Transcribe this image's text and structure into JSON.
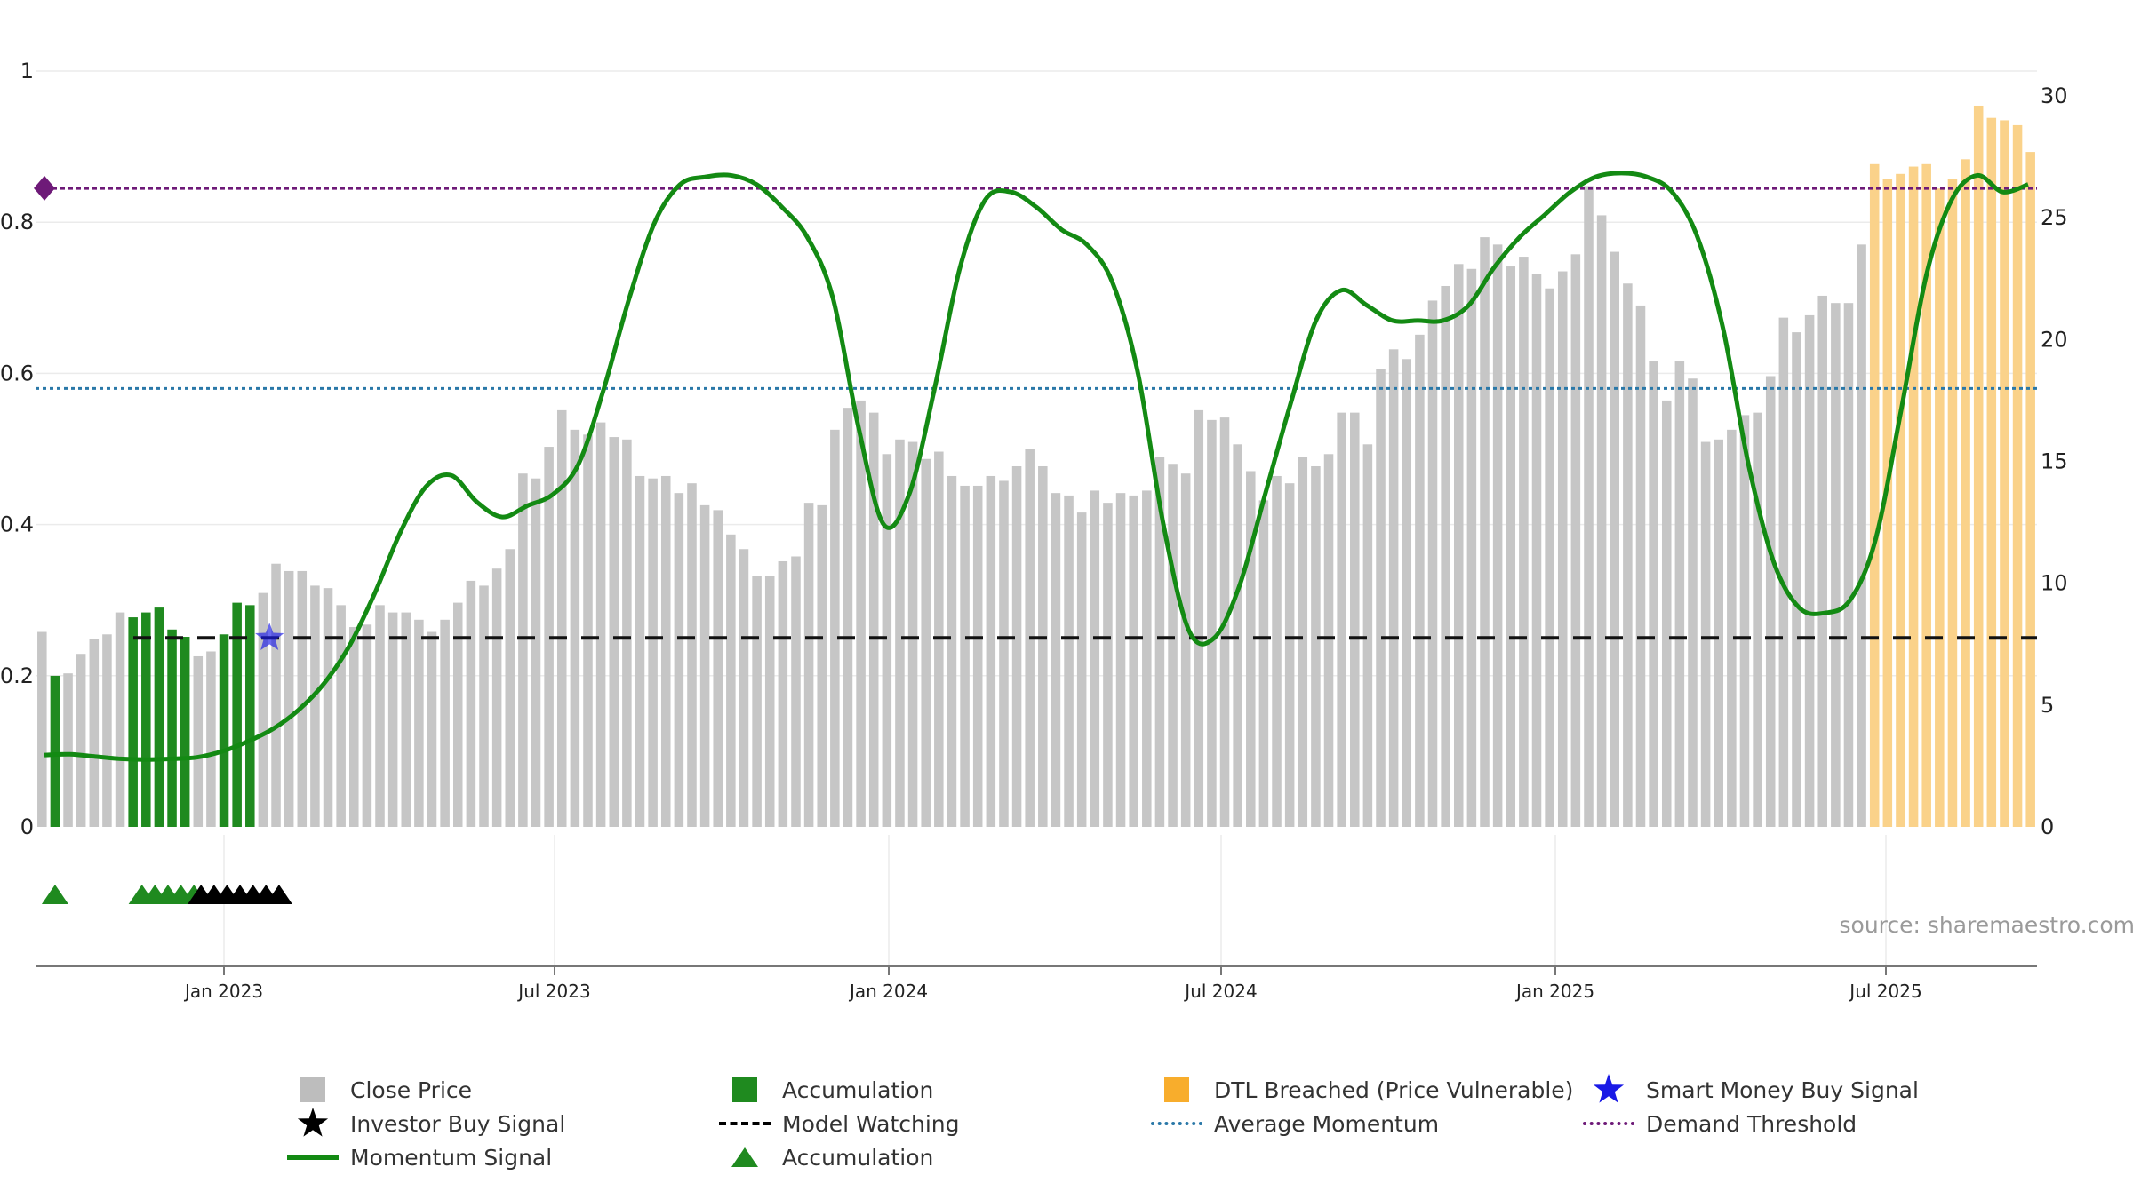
{
  "chart_data": {
    "type": "bar",
    "source": "source: sharemaestro.com",
    "x_ticks": [
      "Jan 2023",
      "Jul 2023",
      "Jan 2024",
      "Jul 2024",
      "Jan 2025",
      "Jul 2025"
    ],
    "y_left": {
      "ticks": [
        "0",
        "0.2",
        "0.4",
        "0.6",
        "0.8",
        "1"
      ],
      "ylim": [
        0,
        1
      ]
    },
    "y_right": {
      "ticks": [
        "0",
        "5",
        "10",
        "15",
        "20",
        "25",
        "30"
      ],
      "ylim": [
        0,
        30
      ]
    },
    "series": [
      {
        "name": "Close Price",
        "axis": "right",
        "values": [
          8.0,
          6.2,
          6.3,
          7.1,
          7.7,
          7.9,
          8.8,
          8.6,
          8.8,
          9.0,
          8.1,
          7.8,
          7.0,
          7.2,
          7.9,
          9.2,
          9.1,
          9.6,
          10.8,
          10.5,
          10.5,
          9.9,
          9.8,
          9.1,
          8.2,
          8.3,
          9.1,
          8.8,
          8.8,
          8.5,
          8.0,
          8.5,
          9.2,
          10.1,
          9.9,
          10.6,
          11.4,
          14.5,
          14.3,
          15.6,
          17.1,
          16.3,
          16.1,
          16.6,
          16.0,
          15.9,
          14.4,
          14.3,
          14.4,
          13.7,
          14.1,
          13.2,
          13.0,
          12.0,
          11.4,
          10.3,
          10.3,
          10.9,
          11.1,
          13.3,
          13.2,
          16.3,
          17.2,
          17.5,
          17.0,
          15.3,
          15.9,
          15.8,
          15.1,
          15.4,
          14.4,
          14.0,
          14.0,
          14.4,
          14.2,
          14.8,
          15.5,
          14.8,
          13.7,
          13.6,
          12.9,
          13.8,
          13.3,
          13.7,
          13.6,
          13.8,
          15.2,
          14.9,
          14.5,
          17.1,
          16.7,
          16.8,
          15.7,
          14.6,
          13.4,
          14.4,
          14.1,
          15.2,
          14.8,
          15.3,
          17.0,
          17.0,
          15.7,
          18.8,
          19.6,
          19.2,
          20.2,
          21.6,
          22.2,
          23.1,
          22.9,
          24.2,
          23.9,
          23.0,
          23.4,
          22.7,
          22.1,
          22.8,
          23.5,
          26.3,
          25.1,
          23.6,
          22.3,
          21.4,
          19.1,
          17.5,
          19.1,
          18.4,
          15.8,
          15.9,
          16.3,
          16.9,
          17.0,
          18.5,
          20.9,
          20.3,
          21.0,
          21.8,
          21.5,
          21.5,
          23.9,
          27.2,
          26.6,
          26.8,
          27.1,
          27.2,
          26.2,
          26.6,
          27.4,
          29.6,
          29.1,
          29.0,
          28.8,
          27.7
        ]
      },
      {
        "name": "Momentum Signal",
        "axis": "left",
        "values": [
          0.095,
          0.096,
          0.093,
          0.09,
          0.089,
          0.09,
          0.092,
          0.1,
          0.113,
          0.13,
          0.155,
          0.19,
          0.24,
          0.31,
          0.39,
          0.45,
          0.465,
          0.43,
          0.41,
          0.425,
          0.44,
          0.48,
          0.58,
          0.7,
          0.8,
          0.85,
          0.86,
          0.862,
          0.85,
          0.82,
          0.78,
          0.7,
          0.53,
          0.4,
          0.44,
          0.58,
          0.74,
          0.83,
          0.84,
          0.82,
          0.79,
          0.77,
          0.72,
          0.6,
          0.4,
          0.26,
          0.25,
          0.32,
          0.44,
          0.56,
          0.67,
          0.71,
          0.69,
          0.67,
          0.67,
          0.67,
          0.69,
          0.74,
          0.78,
          0.81,
          0.84,
          0.86,
          0.865,
          0.86,
          0.84,
          0.78,
          0.66,
          0.48,
          0.35,
          0.29,
          0.283,
          0.3,
          0.38,
          0.55,
          0.73,
          0.83,
          0.862,
          0.84,
          0.85
        ]
      },
      {
        "name": "Average Momentum",
        "axis": "left",
        "value": 0.58
      },
      {
        "name": "Demand Threshold",
        "axis": "left",
        "value": 0.845
      },
      {
        "name": "Model Watching",
        "axis": "left",
        "value": 0.25
      }
    ],
    "legend": {
      "close_price": "Close Price",
      "accumulation_bar": "Accumulation",
      "dtl_breached": "DTL Breached (Price Vulnerable)",
      "smart_money": "Smart Money Buy Signal",
      "investor_buy": "Investor Buy Signal",
      "model_watching": "Model Watching",
      "avg_momentum": "Average Momentum",
      "demand_threshold": "Demand Threshold",
      "momentum_signal": "Momentum Signal",
      "accumulation_marker": "Accumulation"
    },
    "colors": {
      "close": "#c6c6c6",
      "accumulation": "#1f8a1f",
      "dtl": "#fad28a",
      "momentum": "#138a13",
      "avg_momentum": "#2a78a8",
      "threshold": "#6e1a78",
      "watching": "#111111",
      "smart_money": "#1a1ae6",
      "investor": "#000000",
      "grid": "#ebebeb",
      "axis": "#777777"
    }
  }
}
